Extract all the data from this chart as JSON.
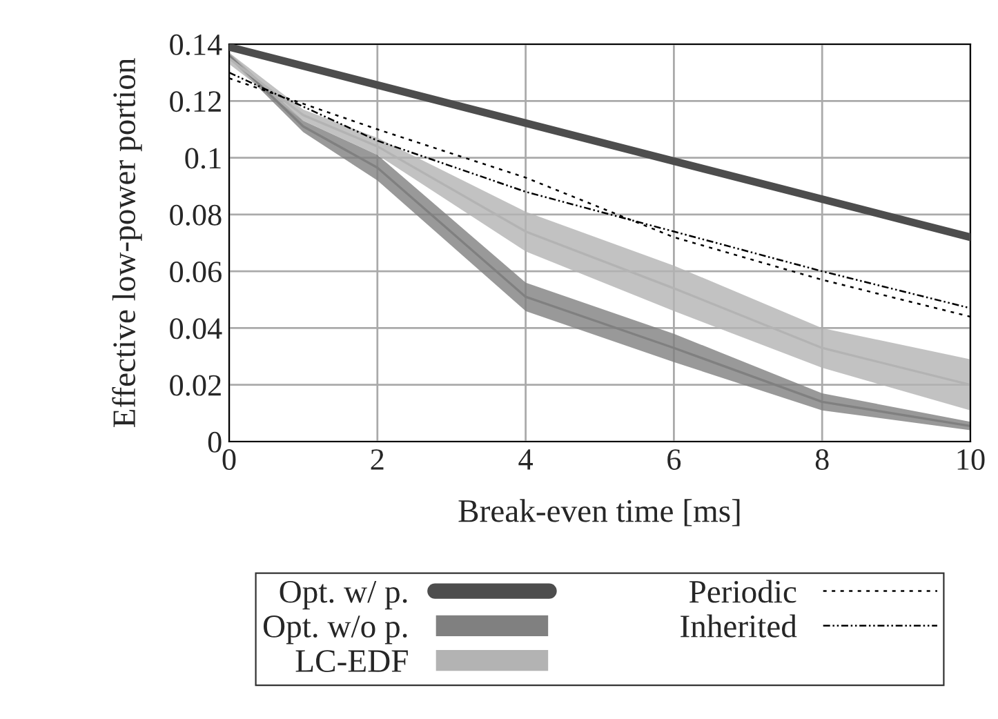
{
  "chart_data": {
    "type": "line",
    "xlabel": "Break-even time [ms]",
    "ylabel": "Effective low-power portion",
    "x": [
      0,
      1,
      2,
      4,
      6,
      8,
      10
    ],
    "series": [
      {
        "name": "Opt. w/ p.",
        "color": "#4d4d4d",
        "line_style": "solid",
        "x": [
          0,
          10
        ],
        "values": [
          0.139,
          0.072
        ]
      },
      {
        "name": "Opt. w/o p.",
        "color": "#808080",
        "values": [
          0.136,
          0.111,
          0.0965,
          0.051,
          0.033,
          0.014,
          0.0055
        ],
        "lower": [
          0.135,
          0.109,
          0.092,
          0.046,
          0.028,
          0.011,
          0.004
        ],
        "upper": [
          0.137,
          0.113,
          0.101,
          0.056,
          0.038,
          0.017,
          0.007
        ]
      },
      {
        "name": "LC-EDF",
        "color": "#b3b3b3",
        "values": [
          0.135,
          0.115,
          0.104,
          0.074,
          0.054,
          0.033,
          0.02
        ],
        "lower": [
          0.133,
          0.113,
          0.101,
          0.067,
          0.046,
          0.026,
          0.011
        ],
        "upper": [
          0.137,
          0.117,
          0.107,
          0.081,
          0.062,
          0.04,
          0.029
        ]
      },
      {
        "name": "Periodic",
        "color": "#000000",
        "line_style": "dotted",
        "values": [
          0.128,
          0.119,
          0.11,
          0.093,
          0.072,
          0.057,
          0.044
        ]
      },
      {
        "name": "Inherited",
        "color": "#000000",
        "line_style": "dashdot",
        "values": [
          0.13,
          0.118,
          0.106,
          0.088,
          0.074,
          0.06,
          0.047
        ]
      }
    ],
    "xlim": [
      0,
      10
    ],
    "xticks": [
      0,
      2,
      4,
      6,
      8,
      10
    ],
    "ylim": [
      0,
      0.14
    ],
    "yticks": [
      0,
      0.02,
      0.04,
      0.06,
      0.08,
      0.1,
      0.12,
      0.14
    ],
    "grid": true,
    "legend": "bottom"
  }
}
